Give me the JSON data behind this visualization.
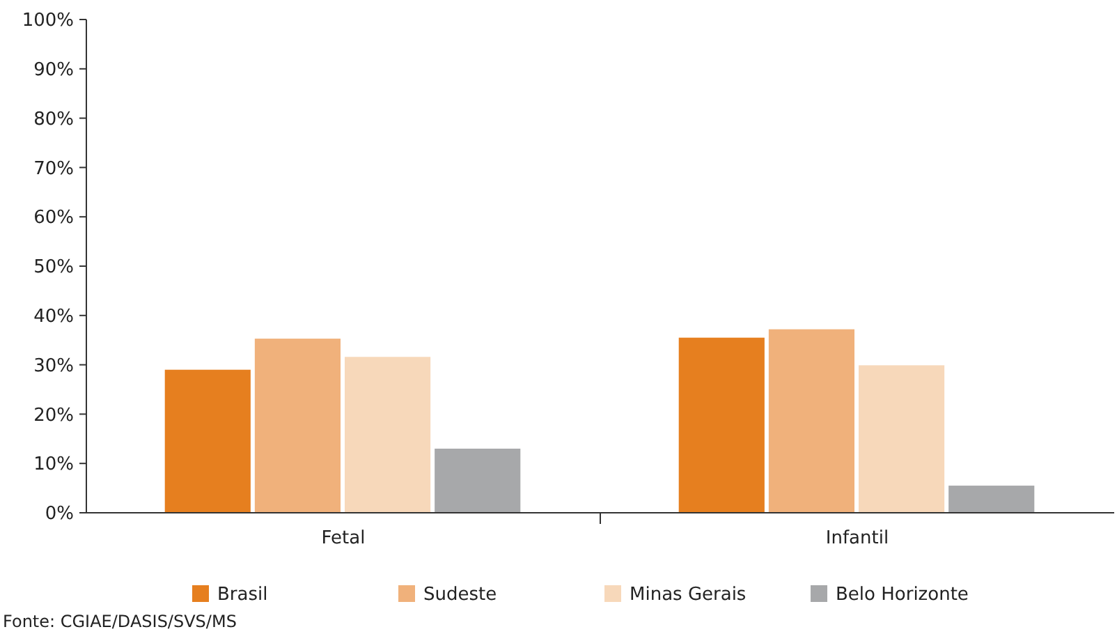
{
  "chart_data": {
    "type": "bar",
    "categories": [
      "Fetal",
      "Infantil"
    ],
    "series": [
      {
        "name": "Brasil",
        "color": "#e67f1f",
        "values": [
          29,
          35.5
        ]
      },
      {
        "name": "Sudeste",
        "color": "#f0b17b",
        "values": [
          35.3,
          37.2
        ]
      },
      {
        "name": "Minas Gerais",
        "color": "#f7d8ba",
        "values": [
          31.6,
          29.9
        ]
      },
      {
        "name": "Belo Horizonte",
        "color": "#a7a8aa",
        "values": [
          13,
          5.5
        ]
      }
    ],
    "ylim": [
      0,
      100
    ],
    "yticks": [
      {
        "value": 0,
        "label": "0%"
      },
      {
        "value": 10,
        "label": "10%"
      },
      {
        "value": 20,
        "label": "20%"
      },
      {
        "value": 30,
        "label": "30%"
      },
      {
        "value": 40,
        "label": "40%"
      },
      {
        "value": 50,
        "label": "50%"
      },
      {
        "value": 60,
        "label": "60%"
      },
      {
        "value": 70,
        "label": "70%"
      },
      {
        "value": 80,
        "label": "80%"
      },
      {
        "value": 90,
        "label": "90%"
      },
      {
        "value": 100,
        "label": "100%"
      }
    ],
    "grid": false,
    "legend": "bottom",
    "annotations": [
      "Fonte: CGIAE/DASIS/SVS/MS"
    ]
  }
}
